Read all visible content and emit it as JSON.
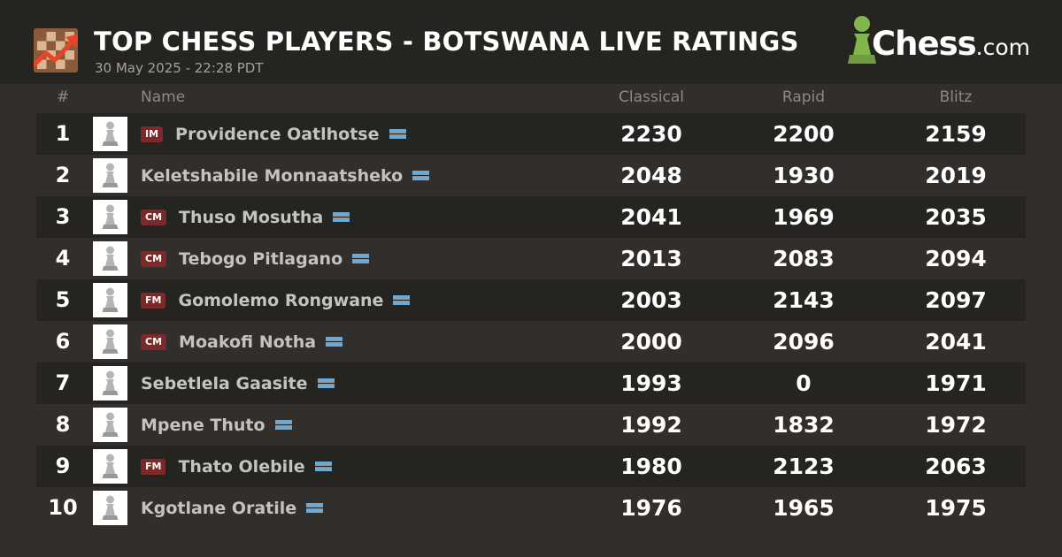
{
  "header": {
    "title": "TOP CHESS PLAYERS - BOTSWANA LIVE RATINGS",
    "subtitle": "30 May 2025 - 22:28 PDT",
    "logo_icon": "trending-chessboard-icon",
    "brand": {
      "name": "Chess",
      "suffix": ".com",
      "icon": "green-pawn-icon",
      "color": "#81b64c"
    }
  },
  "columns": {
    "rank": "#",
    "name": "Name",
    "classical": "Classical",
    "rapid": "Rapid",
    "blitz": "Blitz"
  },
  "colors": {
    "title_badge": "#7c2929",
    "flag_blue": "#6da9d2",
    "row_dark": "#262421",
    "background": "#312e2b"
  },
  "players": [
    {
      "rank": "1",
      "title": "IM",
      "name": "Providence Oatlhotse",
      "classical": "2230",
      "rapid": "2200",
      "blitz": "2159"
    },
    {
      "rank": "2",
      "title": "",
      "name": "Keletshabile Monnaatsheko",
      "classical": "2048",
      "rapid": "1930",
      "blitz": "2019"
    },
    {
      "rank": "3",
      "title": "CM",
      "name": "Thuso Mosutha",
      "classical": "2041",
      "rapid": "1969",
      "blitz": "2035"
    },
    {
      "rank": "4",
      "title": "CM",
      "name": "Tebogo Pitlagano",
      "classical": "2013",
      "rapid": "2083",
      "blitz": "2094"
    },
    {
      "rank": "5",
      "title": "FM",
      "name": "Gomolemo Rongwane",
      "classical": "2003",
      "rapid": "2143",
      "blitz": "2097"
    },
    {
      "rank": "6",
      "title": "CM",
      "name": "Moakofi Notha",
      "classical": "2000",
      "rapid": "2096",
      "blitz": "2041"
    },
    {
      "rank": "7",
      "title": "",
      "name": "Sebetlela Gaasite",
      "classical": "1993",
      "rapid": "0",
      "blitz": "1971"
    },
    {
      "rank": "8",
      "title": "",
      "name": "Mpene Thuto",
      "classical": "1992",
      "rapid": "1832",
      "blitz": "1972"
    },
    {
      "rank": "9",
      "title": "FM",
      "name": "Thato Olebile",
      "classical": "1980",
      "rapid": "2123",
      "blitz": "2063"
    },
    {
      "rank": "10",
      "title": "",
      "name": "Kgotlane Oratile",
      "classical": "1976",
      "rapid": "1965",
      "blitz": "1975"
    }
  ]
}
